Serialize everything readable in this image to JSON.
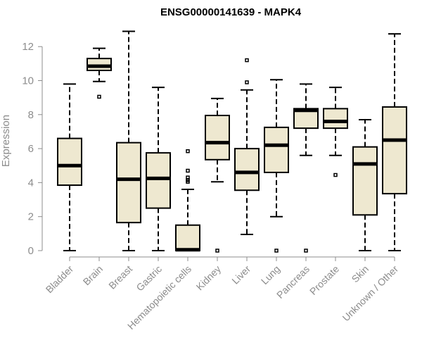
{
  "chart_data": {
    "type": "boxplot",
    "title": "ENSG00000141639 - MAPK4",
    "xlabel": "",
    "ylabel": "Expression",
    "ylim": [
      0,
      13
    ],
    "yticks": [
      0,
      2,
      4,
      6,
      8,
      10,
      12
    ],
    "categories": [
      "Bladder",
      "Brain",
      "Breast",
      "Gastric",
      "Hematopoietic cells",
      "Kidney",
      "Liver",
      "Lung",
      "Pancreas",
      "Prostate",
      "Skin",
      "Unknown / Other"
    ],
    "boxes": [
      {
        "category": "Bladder",
        "min": 0.0,
        "q1": 3.85,
        "median": 5.0,
        "q3": 6.6,
        "max": 9.8,
        "outliers": []
      },
      {
        "category": "Brain",
        "min": 9.95,
        "q1": 10.6,
        "median": 10.85,
        "q3": 11.3,
        "max": 11.9,
        "outliers": [
          9.05
        ]
      },
      {
        "category": "Breast",
        "min": 0.0,
        "q1": 1.65,
        "median": 4.2,
        "q3": 6.35,
        "max": 12.9,
        "outliers": []
      },
      {
        "category": "Gastric",
        "min": 0.0,
        "q1": 2.5,
        "median": 4.25,
        "q3": 5.75,
        "max": 9.6,
        "outliers": []
      },
      {
        "category": "Hematopoietic cells",
        "min": 0.0,
        "q1": 0.0,
        "median": 0.05,
        "q3": 1.5,
        "max": 3.6,
        "outliers": [
          4.05,
          4.15,
          4.3,
          4.7,
          5.85
        ]
      },
      {
        "category": "Kidney",
        "min": 4.05,
        "q1": 5.35,
        "median": 6.35,
        "q3": 7.95,
        "max": 8.95,
        "outliers": [
          0.0
        ]
      },
      {
        "category": "Liver",
        "min": 0.95,
        "q1": 3.55,
        "median": 4.6,
        "q3": 6.0,
        "max": 9.45,
        "outliers": [
          9.9,
          11.2
        ]
      },
      {
        "category": "Lung",
        "min": 2.0,
        "q1": 4.6,
        "median": 6.2,
        "q3": 7.25,
        "max": 10.05,
        "outliers": [
          0.0
        ]
      },
      {
        "category": "Pancreas",
        "min": 5.6,
        "q1": 7.2,
        "median": 8.25,
        "q3": 8.35,
        "max": 9.8,
        "outliers": [
          0.0
        ]
      },
      {
        "category": "Prostate",
        "min": 5.6,
        "q1": 7.2,
        "median": 7.6,
        "q3": 8.35,
        "max": 9.6,
        "outliers": [
          4.45
        ]
      },
      {
        "category": "Skin",
        "min": 0.0,
        "q1": 2.1,
        "median": 5.1,
        "q3": 6.1,
        "max": 7.7,
        "outliers": []
      },
      {
        "category": "Unknown / Other",
        "min": 0.0,
        "q1": 3.35,
        "median": 6.5,
        "q3": 8.45,
        "max": 12.75,
        "outliers": []
      }
    ],
    "grid": false,
    "colors": {
      "box_fill": "#eee8d0",
      "stroke": "#000000",
      "axis": "#8c8c8c"
    }
  }
}
